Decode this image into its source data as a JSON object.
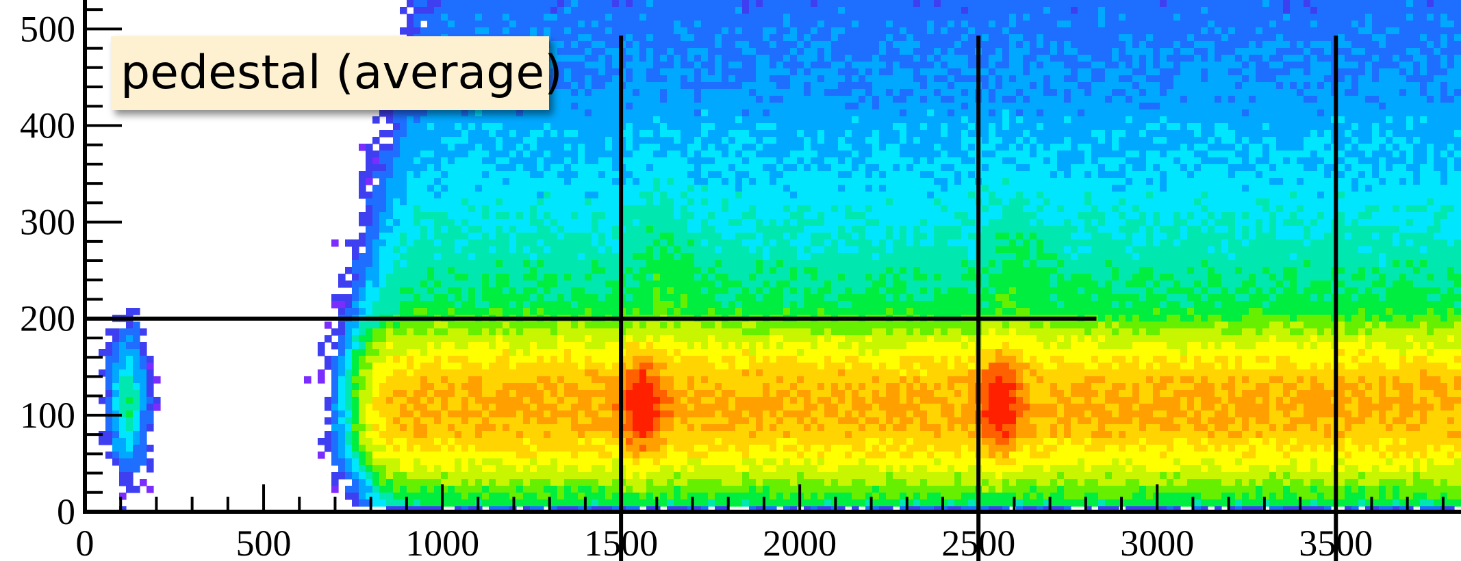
{
  "chart_data": {
    "type": "heatmap",
    "title": "",
    "annotation": "pedestal (average)",
    "xlabel": "",
    "ylabel": "",
    "xlim": [
      0,
      3850
    ],
    "ylim": [
      0,
      530
    ],
    "x_ticks": [
      0,
      500,
      1000,
      1500,
      2000,
      2500,
      3000,
      3500
    ],
    "x_tick_labels": [
      "0",
      "500",
      "1000",
      "1500",
      "2000",
      "2500",
      "3000",
      "3500"
    ],
    "y_ticks": [
      0,
      100,
      200,
      300,
      400,
      500
    ],
    "y_tick_labels": [
      "0",
      "100",
      "200",
      "300",
      "400",
      "500"
    ],
    "colormap": [
      "#ffffff",
      "#7b2cff",
      "#3f3ff2",
      "#1e6fff",
      "#00a8ff",
      "#00e6ff",
      "#00e8b0",
      "#00ee40",
      "#66f000",
      "#c8f500",
      "#ffff00",
      "#ffd400",
      "#ffa000",
      "#ff6000",
      "#ff2000"
    ],
    "band_center_y": 110,
    "band_onset_x": 800,
    "hotspots": [
      {
        "x": 1560,
        "y": 110,
        "level": 1.0
      },
      {
        "x": 2560,
        "y": 110,
        "level": 1.0
      }
    ],
    "isolated_blob": {
      "x": 120,
      "y": 115
    },
    "reference_lines": {
      "horizontal": [
        {
          "y": 200,
          "x_from": 0,
          "x_to": 2830
        }
      ],
      "vertical": [
        {
          "x": 1500
        },
        {
          "x": 2500
        },
        {
          "x": 3500
        }
      ]
    },
    "grid": false
  }
}
